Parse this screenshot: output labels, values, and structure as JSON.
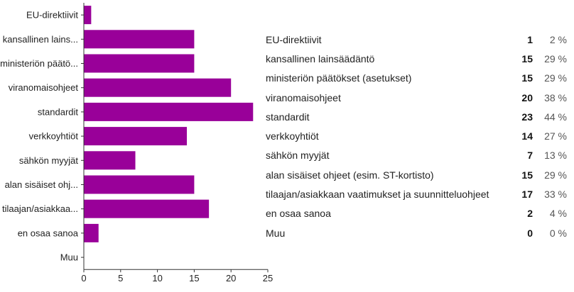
{
  "chart_data": {
    "type": "bar",
    "orientation": "horizontal",
    "categories": [
      "EU-direktiivit",
      "kansallinen lainsäädäntö",
      "ministeriön päätökset (asetukset)",
      "viranomaisohjeet",
      "standardit",
      "verkkoyhtiöt",
      "sähkön myyjät",
      "alan sisäiset ohjeet (esim. ST-kortisto)",
      "tilaajan/asiakkaan vaatimukset ja suunnitteluohjeet",
      "en osaa sanoa",
      "Muu"
    ],
    "axis_labels": [
      "EU-direktiivit",
      "kansallinen lains...",
      "ministeriön päätö...",
      "viranomaisohjeet",
      "standardit",
      "verkkoyhtiöt",
      "sähkön myyjät",
      "alan sisäiset ohj...",
      "tilaajan/asiakkaa...",
      "en osaa sanoa",
      "Muu"
    ],
    "values": [
      1,
      15,
      15,
      20,
      23,
      14,
      7,
      15,
      17,
      2,
      0
    ],
    "percentages": [
      "2 %",
      "29 %",
      "29 %",
      "38 %",
      "44 %",
      "27 %",
      "13 %",
      "29 %",
      "33 %",
      "4 %",
      "0 %"
    ],
    "xlim": [
      0,
      25
    ],
    "xticks": [
      0,
      5,
      10,
      15,
      20,
      25
    ],
    "bar_color": "#990099",
    "grid": false
  }
}
